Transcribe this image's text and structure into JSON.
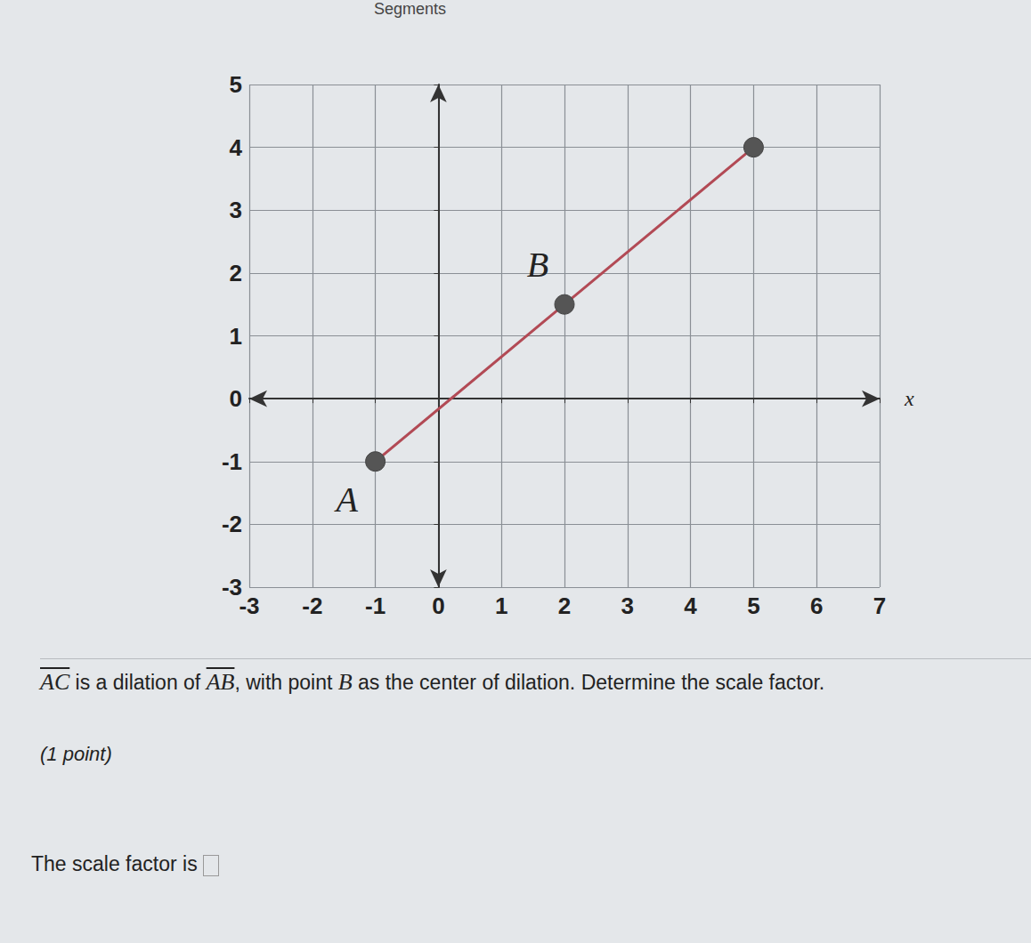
{
  "header": "Segments",
  "chart_data": {
    "type": "line",
    "x": [
      -1,
      2,
      5
    ],
    "values": [
      -1,
      1.5,
      4
    ],
    "point_labels": [
      "A",
      "B",
      null
    ],
    "color": "#b24a55",
    "marker": "circle",
    "x_label": "x",
    "xlim": [
      -3,
      7
    ],
    "xticks": [
      -3,
      -2,
      -1,
      0,
      1,
      2,
      3,
      4,
      5,
      6,
      7
    ],
    "ylim": [
      -3,
      5
    ],
    "yticks": [
      -3,
      -2,
      -1,
      0,
      1,
      2,
      3,
      4,
      5
    ],
    "grid": true
  },
  "question": {
    "segment1": "AC",
    "text1": "is a dilation of",
    "segment2": "AB",
    "text2": ", with point",
    "point": "B",
    "text3": "as the center of dilation. Determine the scale factor.",
    "points": "(1 point)",
    "answer": "The scale factor is"
  }
}
